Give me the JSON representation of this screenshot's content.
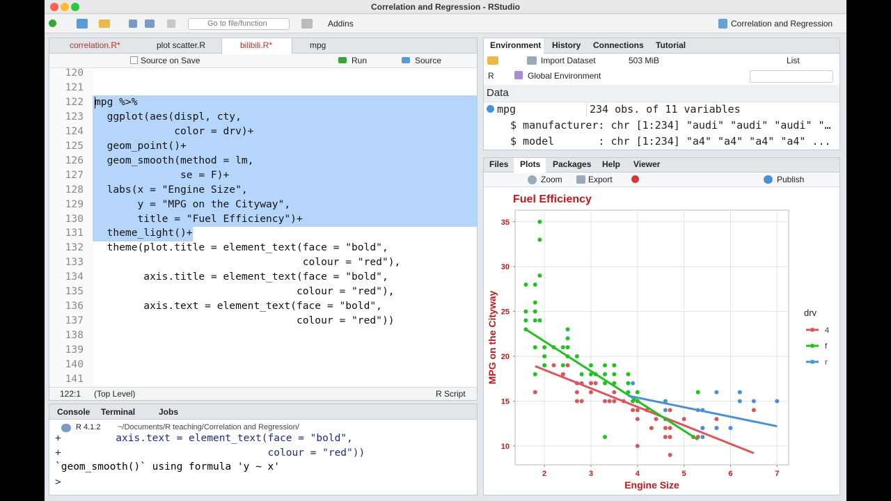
{
  "window": {
    "title": "Correlation and Regression - RStudio"
  },
  "toolbar": {
    "goto": "Go to file/function",
    "addins": "Addins",
    "project": "Correlation and Regression"
  },
  "editor": {
    "tabs": [
      "correlation.R*",
      "plot scatter.R",
      "bilibili.R*",
      "mpg"
    ],
    "toolbar": {
      "source_on_save": "Source on Save",
      "run": "Run",
      "source": "Source"
    },
    "lines": [
      {
        "n": 120
      },
      {
        "n": 121
      },
      {
        "n": 122,
        "code": "mpg %>%"
      },
      {
        "n": 123,
        "code": "  ggplot(aes(displ, cty,"
      },
      {
        "n": 124,
        "code": "             color = drv)+"
      },
      {
        "n": 125,
        "code": "  geom_point()+"
      },
      {
        "n": 126,
        "code": "  geom_smooth(method = lm,"
      },
      {
        "n": 127,
        "code": "              se = F)+"
      },
      {
        "n": 128,
        "code": "  labs(x = \"Engine Size\","
      },
      {
        "n": 129,
        "code": "       y = \"MPG on the Cityway\","
      },
      {
        "n": 130,
        "code": "       title = \"Fuel Efficiency\")+"
      },
      {
        "n": 131,
        "code": "  theme_light()+"
      },
      {
        "n": 132,
        "code": "  theme(plot.title = element_text(face = \"bold\","
      },
      {
        "n": 133,
        "code": "                                  colour = \"red\"),"
      },
      {
        "n": 134,
        "code": "        axis.title = element_text(face = \"bold\","
      },
      {
        "n": 135,
        "code": "                                 colour = \"red\"),"
      },
      {
        "n": 136,
        "code": "        axis.text = element_text(face = \"bold\","
      },
      {
        "n": 137,
        "code": "                                 colour = \"red\"))"
      },
      {
        "n": 138
      },
      {
        "n": 139
      },
      {
        "n": 140
      },
      {
        "n": 141
      }
    ],
    "status": {
      "position": "122:1",
      "scope": "(Top Level)",
      "filetype": "R Script"
    }
  },
  "console": {
    "tabs": [
      "Console",
      "Terminal",
      "Jobs"
    ],
    "version": "R 4.1.2",
    "path": "~/Documents/R teaching/Correlation and Regression/",
    "lines": [
      "+         axis.text = element_text(face = \"bold\",",
      "+                                  colour = \"red\"))",
      "`geom_smooth()` using formula 'y ~ x'",
      ">"
    ]
  },
  "environment_pane": {
    "tabs": [
      "Environment",
      "History",
      "Connections",
      "Tutorial"
    ],
    "import": "Import Dataset",
    "memory": "503 MiB",
    "view": "List",
    "language": "R",
    "scope": "Global Environment",
    "section": "Data",
    "rows": [
      {
        "name": "mpg",
        "value": "234 obs. of 11 variables"
      },
      {
        "name": "$ manufacturer: chr [1:234] \"audi\" \"audi\" \"audi\" \"…"
      },
      {
        "name": "$ model       : chr [1:234] \"a4\" \"a4\" \"a4\" \"a4\" ..."
      }
    ]
  },
  "plots_pane": {
    "tabs": [
      "Files",
      "Plots",
      "Packages",
      "Help",
      "Viewer"
    ],
    "zoom": "Zoom",
    "export": "Export",
    "publish": "Publish",
    "chart": {
      "type": "scatter",
      "title": "Fuel Efficiency",
      "x_label": "Engine Size",
      "y_label": "MPG on the Cityway",
      "xlim": [
        1.37,
        7.25
      ],
      "ylim": [
        7.9,
        36.3
      ],
      "xticks": [
        2,
        3,
        4,
        5,
        6,
        7
      ],
      "yticks": [
        10,
        15,
        20,
        25,
        30,
        35
      ],
      "grid": true,
      "legend": {
        "title": "drv",
        "position": "right"
      },
      "series": [
        {
          "name": "4",
          "color": "#d9575c",
          "x": [
            1.8,
            2.0,
            2.2,
            2.4,
            2.5,
            2.7,
            2.7,
            2.7,
            2.8,
            2.8,
            3.0,
            3.0,
            3.1,
            3.3,
            3.4,
            3.5,
            3.5,
            3.7,
            3.9,
            4.0,
            4.0,
            4.0,
            4.0,
            4.2,
            4.3,
            4.4,
            4.6,
            4.6,
            4.6,
            4.7,
            4.7,
            4.7,
            4.7,
            5.0,
            5.2,
            5.3,
            5.4,
            5.4,
            5.7,
            5.7,
            6.5
          ],
          "y": [
            16,
            19,
            19,
            18,
            19,
            17,
            16,
            15,
            15,
            17,
            16,
            17,
            17,
            15,
            15,
            16,
            15,
            15,
            14,
            15,
            14,
            13,
            10,
            14,
            12,
            13,
            13,
            12,
            11,
            12,
            11,
            9,
            14,
            13,
            11,
            11,
            14,
            12,
            13,
            12,
            14
          ],
          "fit": {
            "x": [
              1.8,
              6.5
            ],
            "y": [
              18.9,
              9.2
            ]
          }
        },
        {
          "name": "f",
          "color": "#22c122",
          "x": [
            1.6,
            1.6,
            1.6,
            1.6,
            1.8,
            1.8,
            1.8,
            1.8,
            1.8,
            1.8,
            1.9,
            1.9,
            1.9,
            1.9,
            2.0,
            2.0,
            2.0,
            2.2,
            2.4,
            2.4,
            2.5,
            2.5,
            2.5,
            2.5,
            2.7,
            2.8,
            3.0,
            3.0,
            3.1,
            3.3,
            3.3,
            3.3,
            3.3,
            3.5,
            3.5,
            3.5,
            3.8,
            3.8,
            3.8,
            3.9,
            4.0,
            4.0,
            5.3
          ],
          "y": [
            28,
            25,
            24,
            23,
            28,
            26,
            25,
            24,
            21,
            18,
            35,
            33,
            29,
            24,
            21,
            20,
            19,
            21,
            21,
            19,
            23,
            22,
            21,
            20,
            20,
            18,
            19,
            18,
            18,
            19,
            18,
            17,
            11,
            19,
            18,
            17,
            18,
            17,
            16,
            15,
            16,
            15,
            16
          ],
          "fit": {
            "x": [
              1.6,
              5.3
            ],
            "y": [
              23.0,
              10.7
            ]
          }
        },
        {
          "name": "r",
          "color": "#4b8fdc",
          "x": [
            3.9,
            4.6,
            4.6,
            5.3,
            5.4,
            5.4,
            5.4,
            5.7,
            5.7,
            6.0,
            6.2,
            6.2,
            6.5,
            7.0
          ],
          "y": [
            17,
            15,
            14,
            14,
            11,
            14,
            12,
            16,
            12,
            12,
            16,
            15,
            15,
            15
          ],
          "fit": {
            "x": [
              3.8,
              7.0
            ],
            "y": [
              15.6,
              12.2
            ]
          }
        }
      ]
    }
  }
}
